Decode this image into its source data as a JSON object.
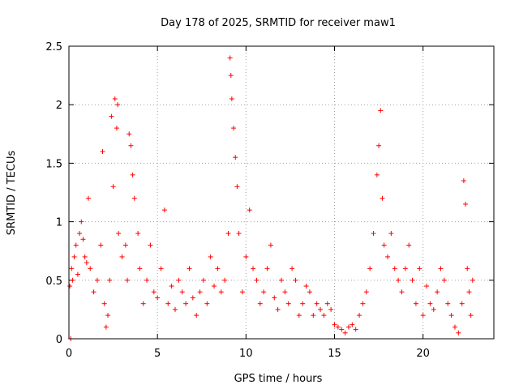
{
  "chart_data": {
    "type": "scatter",
    "title": "Day 178 of 2025, SRMTID for receiver maw1",
    "xlabel": "GPS time / hours",
    "ylabel": "SRMTID / TECUs",
    "xlim": [
      0,
      24
    ],
    "ylim": [
      0,
      2.5
    ],
    "grid": true,
    "x_ticks": [
      0,
      5,
      10,
      15,
      20
    ],
    "y_ticks": [
      0,
      0.5,
      1,
      1.5,
      2,
      2.5
    ],
    "x_tick_labels": [
      "0",
      "5",
      "10",
      "15",
      "20"
    ],
    "y_tick_labels": [
      "0",
      "0.5",
      "1",
      "1.5",
      "2",
      "2.5"
    ],
    "marker": "+",
    "color": "#ff0000",
    "series": [
      {
        "name": "SRMTID",
        "x": [
          0.05,
          0.1,
          0.15,
          0.2,
          0.3,
          0.4,
          0.5,
          0.6,
          0.7,
          0.8,
          0.9,
          1.0,
          1.1,
          1.2,
          1.4,
          1.6,
          1.8,
          1.9,
          2.0,
          2.1,
          2.2,
          2.3,
          2.4,
          2.5,
          2.6,
          2.7,
          2.75,
          2.8,
          3.0,
          3.2,
          3.3,
          3.4,
          3.5,
          3.6,
          3.7,
          3.9,
          4.0,
          4.2,
          4.4,
          4.6,
          4.8,
          5.0,
          5.2,
          5.4,
          5.6,
          5.8,
          6.0,
          6.2,
          6.4,
          6.6,
          6.8,
          7.0,
          7.2,
          7.4,
          7.6,
          7.8,
          8.0,
          8.2,
          8.4,
          8.6,
          8.8,
          9.0,
          9.1,
          9.15,
          9.2,
          9.3,
          9.4,
          9.5,
          9.6,
          9.8,
          10.0,
          10.2,
          10.4,
          10.6,
          10.8,
          11.0,
          11.2,
          11.4,
          11.6,
          11.8,
          12.0,
          12.2,
          12.4,
          12.6,
          12.8,
          13.0,
          13.2,
          13.4,
          13.6,
          13.8,
          14.0,
          14.2,
          14.4,
          14.6,
          14.8,
          15.0,
          15.2,
          15.4,
          15.6,
          15.8,
          16.0,
          16.2,
          16.4,
          16.6,
          16.8,
          17.0,
          17.2,
          17.4,
          17.5,
          17.6,
          17.7,
          17.8,
          18.0,
          18.2,
          18.4,
          18.6,
          18.8,
          19.0,
          19.2,
          19.4,
          19.6,
          19.8,
          20.0,
          20.2,
          20.4,
          20.6,
          20.8,
          21.0,
          21.2,
          21.4,
          21.6,
          21.8,
          22.0,
          22.2,
          22.3,
          22.4,
          22.5,
          22.6,
          22.7,
          22.8
        ],
        "y": [
          0.45,
          0.0,
          0.6,
          0.5,
          0.7,
          0.8,
          0.55,
          0.9,
          1.0,
          0.85,
          0.7,
          0.65,
          1.2,
          0.6,
          0.4,
          0.5,
          0.8,
          1.6,
          0.3,
          0.1,
          0.2,
          0.5,
          1.9,
          1.3,
          2.05,
          1.8,
          2.0,
          0.9,
          0.7,
          0.8,
          0.5,
          1.75,
          1.65,
          1.4,
          1.2,
          0.9,
          0.6,
          0.3,
          0.5,
          0.8,
          0.4,
          0.35,
          0.6,
          1.1,
          0.3,
          0.45,
          0.25,
          0.5,
          0.4,
          0.3,
          0.6,
          0.35,
          0.2,
          0.4,
          0.5,
          0.3,
          0.7,
          0.45,
          0.6,
          0.4,
          0.5,
          0.9,
          2.4,
          2.25,
          2.05,
          1.8,
          1.55,
          1.3,
          0.9,
          0.4,
          0.7,
          1.1,
          0.6,
          0.5,
          0.3,
          0.4,
          0.6,
          0.8,
          0.35,
          0.25,
          0.5,
          0.4,
          0.3,
          0.6,
          0.5,
          0.2,
          0.3,
          0.45,
          0.4,
          0.2,
          0.3,
          0.25,
          0.2,
          0.3,
          0.25,
          0.12,
          0.1,
          0.08,
          0.05,
          0.1,
          0.12,
          0.08,
          0.2,
          0.3,
          0.4,
          0.6,
          0.9,
          1.4,
          1.65,
          1.95,
          1.2,
          0.8,
          0.7,
          0.9,
          0.6,
          0.5,
          0.4,
          0.6,
          0.8,
          0.5,
          0.3,
          0.6,
          0.2,
          0.45,
          0.3,
          0.25,
          0.4,
          0.6,
          0.5,
          0.3,
          0.2,
          0.1,
          0.05,
          0.3,
          1.35,
          1.15,
          0.6,
          0.4,
          0.2,
          0.5
        ]
      }
    ]
  }
}
